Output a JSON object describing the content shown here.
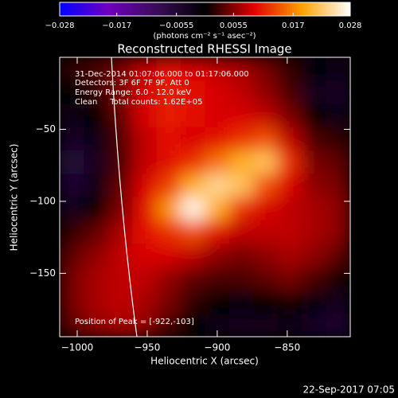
{
  "chart_data": {
    "type": "heatmap",
    "title": "Reconstructed RHESSI Image",
    "colorbar_label": "(photons cm⁻² s⁻¹ asec⁻²)",
    "xlabel": "Heliocentric X (arcsec)",
    "ylabel": "Heliocentric Y (arcsec)",
    "annotations": [
      "31-Dec-2014 01:07:06.000 to 01:17:06.000",
      "Detectors: 3F 6F 7F 9F, Att 0",
      "Energy Range: 6.0 - 12.0 keV",
      "Clean     Total counts: 1.62E+05"
    ],
    "peak_label": "Position of Peak = [-922,-103]",
    "timestamp": "22-Sep-2017 07:05",
    "xlim": [
      -1012.5,
      -805
    ],
    "ylim": [
      -194,
      0
    ],
    "xticks": [
      {
        "value": -1000,
        "label": "−1000"
      },
      {
        "value": -950,
        "label": "−950"
      },
      {
        "value": -900,
        "label": "−900"
      },
      {
        "value": -850,
        "label": "−850"
      }
    ],
    "yticks": [
      {
        "value": -50,
        "label": "−50"
      },
      {
        "value": -100,
        "label": "−100"
      },
      {
        "value": -150,
        "label": "−150"
      }
    ],
    "clim": [
      -0.028,
      0.028
    ],
    "cticks": [
      {
        "value": -0.028,
        "label": "−0.028"
      },
      {
        "value": -0.017,
        "label": "−0.017"
      },
      {
        "value": -0.0055,
        "label": "−0.0055"
      },
      0.0055,
      0.017,
      0.028
    ],
    "colormap": [
      "#0000ff",
      "#7000c0",
      "#3a0c5a",
      "#000000",
      "#e00000",
      "#ffa000",
      "#ffffff"
    ],
    "z": [
      [
        0.002,
        0.003,
        0.005,
        0.008,
        0.01,
        0.009,
        0.008,
        0.007,
        0.005,
        0.002,
        -0.001,
        -0.002
      ],
      [
        0.0,
        0.002,
        0.005,
        0.009,
        0.011,
        0.01,
        0.009,
        0.008,
        0.006,
        0.003,
        -0.003,
        -0.004
      ],
      [
        -0.002,
        0.0,
        0.004,
        0.009,
        0.011,
        0.01,
        0.009,
        0.009,
        0.008,
        0.005,
        0.0,
        -0.002
      ],
      [
        -0.004,
        -0.002,
        0.003,
        0.008,
        0.01,
        0.009,
        0.01,
        0.012,
        0.014,
        0.008,
        0.003,
        0.002
      ],
      [
        -0.006,
        -0.003,
        0.003,
        0.008,
        0.01,
        0.012,
        0.016,
        0.02,
        0.022,
        0.012,
        0.005,
        0.004
      ],
      [
        -0.005,
        -0.002,
        0.004,
        0.009,
        0.013,
        0.02,
        0.024,
        0.022,
        0.014,
        0.009,
        0.006,
        0.005
      ],
      [
        -0.003,
        0.0,
        0.005,
        0.01,
        0.018,
        0.027,
        0.02,
        0.012,
        0.009,
        0.008,
        0.007,
        0.006
      ],
      [
        0.002,
        0.004,
        0.007,
        0.01,
        0.012,
        0.014,
        0.01,
        0.008,
        0.008,
        0.008,
        0.007,
        0.006
      ],
      [
        0.004,
        0.006,
        0.008,
        0.009,
        0.009,
        0.008,
        0.006,
        0.005,
        0.006,
        0.007,
        0.006,
        0.004
      ],
      [
        0.005,
        0.007,
        0.008,
        0.008,
        0.006,
        0.004,
        0.003,
        0.003,
        0.004,
        0.005,
        0.003,
        0.001
      ],
      [
        0.005,
        0.007,
        0.008,
        0.007,
        0.005,
        0.002,
        0.0,
        -0.001,
        0.0,
        0.001,
        -0.001,
        -0.003
      ],
      [
        0.004,
        0.006,
        0.007,
        0.006,
        0.003,
        0.0,
        -0.002,
        -0.003,
        -0.003,
        -0.002,
        -0.004,
        -0.005
      ]
    ]
  }
}
